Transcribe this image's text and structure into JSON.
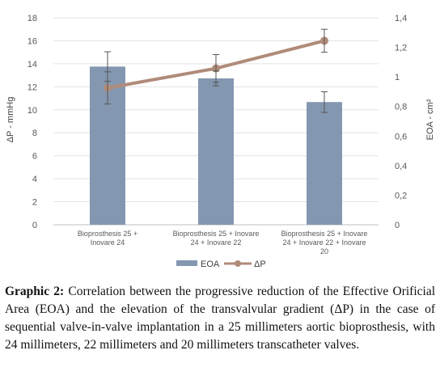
{
  "chart_data": {
    "type": "bar+line",
    "categories": [
      [
        "Bioprosthesis 25 +",
        "Inovare 24"
      ],
      [
        "Bioprosthesis 25 + Inovare",
        "24 + Inovare 22"
      ],
      [
        "Bioprosthesis 25 + Inovare",
        "24 + Inovare 22 + Inovare",
        "20"
      ]
    ],
    "series": [
      {
        "name": "EOA",
        "type": "bar",
        "axis": "right",
        "values": [
          1.07,
          0.99,
          0.83
        ],
        "error": [
          0.1,
          0.05,
          0.07
        ],
        "color": "#8497b0"
      },
      {
        "name": "ΔP",
        "type": "line",
        "axis": "left",
        "values": [
          11.9,
          13.6,
          16
        ],
        "error": [
          1.4,
          1.2,
          1.0
        ],
        "color": "#b08b7a"
      }
    ],
    "ylabel_left": "ΔP - mmHg",
    "ylabel_right": "EOA - cm²",
    "ylim_left": [
      0,
      18
    ],
    "ylim_right": [
      0,
      1.4
    ],
    "yticks_left": [
      "0",
      "2",
      "4",
      "6",
      "8",
      "10",
      "12",
      "14",
      "16",
      "18"
    ],
    "yticks_right": [
      "0",
      "0,2",
      "0,4",
      "0,6",
      "0,8",
      "1",
      "1,2",
      "1,4"
    ],
    "grid": true,
    "legend": "bottom"
  },
  "caption": {
    "label": "Graphic 2:",
    "text": " Correlation between the progressive reduction of the Effective Orificial Area (EOA) and the elevation of the transvalvular gradient (ΔP) in the case of sequential valve-in-valve implantation in a 25 millimeters aortic bioprosthesis, with 24 millimeters, 22 millimeters and 20 millimeters transcatheter valves."
  }
}
